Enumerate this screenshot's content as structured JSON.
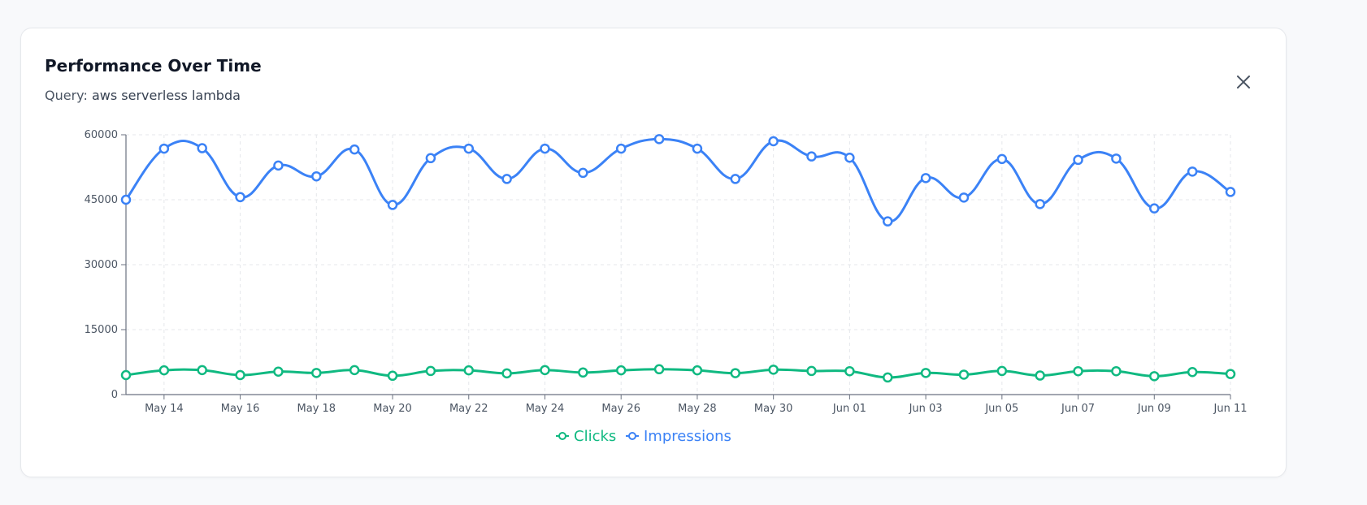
{
  "card": {
    "title": "Performance Over Time",
    "query_prefix": "Query:",
    "query_text": "aws serverless lambda",
    "close_icon": "close-icon"
  },
  "colors": {
    "clicks": "#10b981",
    "impressions": "#3b82f6",
    "axis": "#6b7280",
    "grid": "#e5e7eb"
  },
  "chart_data": {
    "type": "line",
    "title": "Performance Over Time",
    "xlabel": "",
    "ylabel": "",
    "ylim": [
      0,
      60000
    ],
    "yticks": [
      "0",
      "15000",
      "30000",
      "45000",
      "60000"
    ],
    "categories": [
      "May 13",
      "May 14",
      "May 15",
      "May 16",
      "May 17",
      "May 18",
      "May 19",
      "May 20",
      "May 21",
      "May 22",
      "May 23",
      "May 24",
      "May 25",
      "May 26",
      "May 27",
      "May 28",
      "May 29",
      "May 30",
      "May 31",
      "Jun 01",
      "Jun 02",
      "Jun 03",
      "Jun 04",
      "Jun 05",
      "Jun 06",
      "Jun 07",
      "Jun 08",
      "Jun 09",
      "Jun 10",
      "Jun 11"
    ],
    "xtick_labels": [
      "May 14",
      "May 16",
      "May 18",
      "May 20",
      "May 22",
      "May 24",
      "May 26",
      "May 28",
      "May 30",
      "Jun 01",
      "Jun 03",
      "Jun 05",
      "Jun 07",
      "Jun 09",
      "Jun 11"
    ],
    "grid": true,
    "legend_position": "bottom-center",
    "series": [
      {
        "name": "Clicks",
        "values": [
          4500,
          5600,
          5650,
          4500,
          5300,
          5000,
          5650,
          4350,
          5450,
          5600,
          4900,
          5650,
          5100,
          5600,
          5850,
          5600,
          4950,
          5750,
          5450,
          5400,
          3950,
          5000,
          4600,
          5450,
          4400,
          5400,
          5400,
          4250,
          5200,
          4750
        ]
      },
      {
        "name": "Impressions",
        "values": [
          45000,
          56800,
          56900,
          45600,
          52900,
          50400,
          56600,
          43800,
          54600,
          56800,
          49800,
          56800,
          51200,
          56800,
          59000,
          56800,
          49800,
          58500,
          55000,
          54700,
          40000,
          50000,
          45500,
          54400,
          44000,
          54200,
          54500,
          43000,
          51500,
          46800
        ]
      }
    ]
  }
}
